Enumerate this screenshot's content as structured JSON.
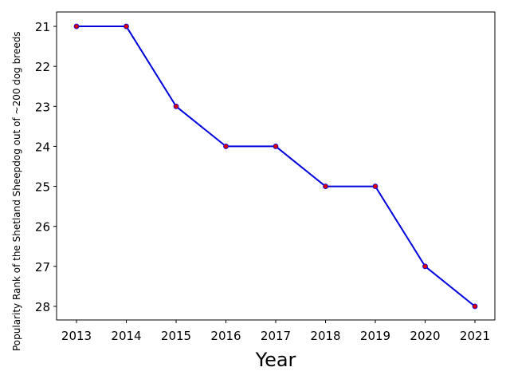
{
  "chart_data": {
    "type": "line",
    "xlabel": "Year",
    "ylabel": "Popularity Rank of the Shetland Sheepdog out of ~200 dog breeds",
    "x": [
      2013,
      2014,
      2015,
      2016,
      2017,
      2018,
      2019,
      2020,
      2021
    ],
    "series": [
      {
        "color": "#0000dd",
        "marker_color": "#dd0000",
        "values": [
          21,
          21,
          23,
          24,
          24,
          25,
          25,
          27,
          28
        ]
      }
    ],
    "xlim": [
      2012.6,
      2021.4
    ],
    "xticks": [
      2013,
      2014,
      2015,
      2016,
      2017,
      2018,
      2019,
      2020,
      2021
    ],
    "ylim": [
      20.64,
      28.34
    ],
    "yticks": [
      21,
      22,
      23,
      24,
      25,
      26,
      27,
      28
    ],
    "y_inverted": true
  }
}
